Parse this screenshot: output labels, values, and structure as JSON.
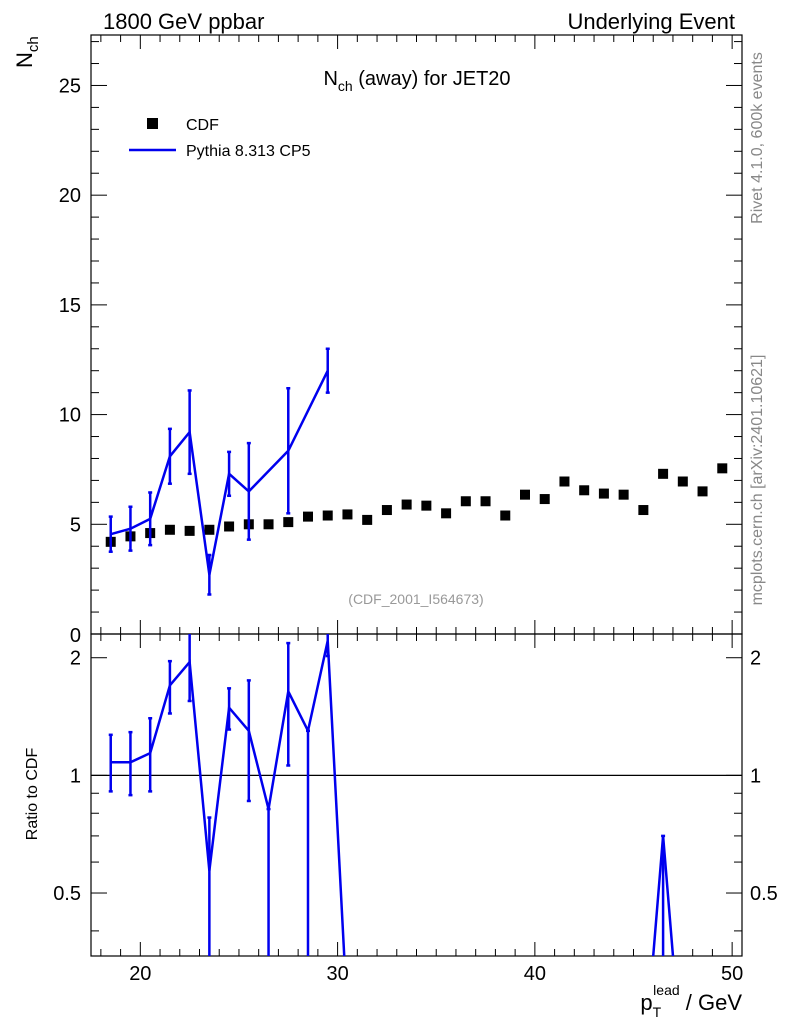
{
  "header": {
    "left": "1800 GeV ppbar",
    "right": "Underlying Event"
  },
  "side_text": {
    "version": "Rivet 4.1.0,  600k events",
    "site": "mcplots.cern.ch [arXiv:2401.10621]"
  },
  "chart_data": [
    {
      "type": "scatter",
      "title_main": "N",
      "title_sub": "ch",
      "title_rest": " (away) for JET20",
      "ylabel_main": "N",
      "ylabel_sub": "ch",
      "watermark": "(CDF_2001_I564673)",
      "xlim": [
        17.5,
        50.5
      ],
      "ylim": [
        0,
        27.3
      ],
      "yticks": [
        5,
        10,
        15,
        20,
        25
      ],
      "ytick_labels": [
        "5",
        "10",
        "15",
        "20",
        "25"
      ],
      "ytick_zero_label": "0",
      "legend": {
        "position": "top-left",
        "entries": [
          "CDF",
          "Pythia 8.313 CP5"
        ]
      },
      "series": [
        {
          "name": "CDF",
          "style": "markers",
          "color": "#000000",
          "x": [
            18.5,
            19.5,
            20.5,
            21.5,
            22.5,
            23.5,
            24.5,
            25.5,
            26.5,
            27.5,
            28.5,
            29.5,
            30.5,
            31.5,
            32.5,
            33.5,
            34.5,
            35.5,
            36.5,
            37.5,
            38.5,
            39.5,
            40.5,
            41.5,
            42.5,
            43.5,
            44.5,
            45.5,
            46.5,
            47.5,
            48.5,
            49.5
          ],
          "y": [
            4.2,
            4.45,
            4.6,
            4.75,
            4.7,
            4.75,
            4.9,
            5.0,
            5.0,
            5.1,
            5.35,
            5.4,
            5.45,
            5.2,
            5.65,
            5.9,
            5.85,
            5.5,
            6.05,
            6.05,
            5.4,
            6.35,
            6.15,
            6.95,
            6.55,
            6.4,
            6.35,
            5.65,
            7.3,
            6.95,
            6.5,
            7.55
          ]
        },
        {
          "name": "Pythia 8.313 CP5",
          "style": "line",
          "color": "#0000ee",
          "x": [
            18.5,
            19.5,
            20.5,
            21.5,
            22.5,
            23.5,
            24.5,
            25.5,
            27.5,
            29.5
          ],
          "y": [
            4.55,
            4.8,
            5.25,
            8.1,
            9.2,
            2.7,
            7.3,
            6.5,
            8.35,
            12.0
          ],
          "err": [
            0.8,
            1.0,
            1.2,
            1.25,
            1.9,
            0.9,
            1.0,
            2.2,
            2.85,
            1.0
          ]
        }
      ]
    },
    {
      "type": "line",
      "ylabel": "Ratio to CDF",
      "xlabel_main": "p",
      "xlabel_sub": "T",
      "xlabel_sup": "lead",
      "xlabel_rest": " / GeV",
      "xlim": [
        17.5,
        50.5
      ],
      "xticks": [
        20,
        30,
        40,
        50
      ],
      "xtick_labels": [
        "20",
        "30",
        "40",
        "50"
      ],
      "ylim_log": [
        0.345,
        2.3
      ],
      "yticks": [
        0.5,
        1,
        2
      ],
      "ytick_labels": [
        "0.5",
        "1",
        "2"
      ],
      "reference_line": 1,
      "series": [
        {
          "name": "Pythia 8.313 CP5",
          "color": "#0000ee",
          "points": [
            {
              "x": 18.5,
              "y": 1.08,
              "lo": 0.91,
              "hi": 1.27
            },
            {
              "x": 19.5,
              "y": 1.08,
              "lo": 0.89,
              "hi": 1.29
            },
            {
              "x": 20.5,
              "y": 1.14,
              "lo": 0.91,
              "hi": 1.4
            },
            {
              "x": 21.5,
              "y": 1.7,
              "lo": 1.44,
              "hi": 1.96
            },
            {
              "x": 22.5,
              "y": 1.95,
              "lo": 1.55,
              "hi": 2.35
            },
            {
              "x": 23.5,
              "y": 0.57,
              "lo": 0.3,
              "hi": 0.78
            },
            {
              "x": 24.5,
              "y": 1.49,
              "lo": 1.31,
              "hi": 1.67
            },
            {
              "x": 25.5,
              "y": 1.3,
              "lo": 0.86,
              "hi": 1.75
            },
            {
              "x": 26.5,
              "y": 0.82,
              "lo": 0.3,
              "hi": 0.82
            },
            {
              "x": 27.5,
              "y": 1.64,
              "lo": 1.06,
              "hi": 2.18
            },
            {
              "x": 28.5,
              "y": 1.3,
              "lo": 0.3,
              "hi": 1.3
            },
            {
              "x": 29.5,
              "y": 2.21,
              "lo": 2.02,
              "hi": 2.4
            },
            {
              "x": 30.4,
              "y": 0.3,
              "lo": null,
              "hi": null
            },
            {
              "x": 45.9,
              "y": 0.3,
              "lo": null,
              "hi": null
            },
            {
              "x": 46.5,
              "y": 0.7,
              "lo": 0.3,
              "hi": 0.7
            },
            {
              "x": 47.1,
              "y": 0.3,
              "lo": null,
              "hi": null
            }
          ]
        }
      ]
    }
  ]
}
